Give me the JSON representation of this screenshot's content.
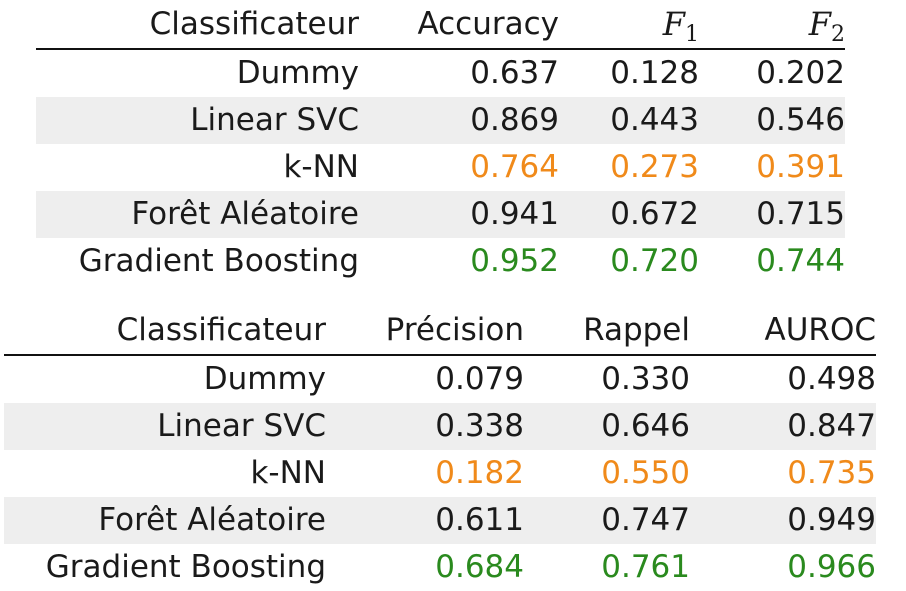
{
  "highlight_colors": {
    "third_best": "#f08a1a",
    "best": "#2a8a1e"
  },
  "table1": {
    "headers": [
      "Classificateur",
      "Accuracy"
    ],
    "metric_headers": [
      {
        "base": "F",
        "sub": "1"
      },
      {
        "base": "F",
        "sub": "2"
      }
    ],
    "rows": [
      {
        "name": "Dummy",
        "values": [
          "0.637",
          "0.128",
          "0.202"
        ],
        "highlight": "none"
      },
      {
        "name": "Linear SVC",
        "values": [
          "0.869",
          "0.443",
          "0.546"
        ],
        "highlight": "none"
      },
      {
        "name": "k-NN",
        "values": [
          "0.764",
          "0.273",
          "0.391"
        ],
        "highlight": "orange"
      },
      {
        "name": "Forêt Aléatoire",
        "values": [
          "0.941",
          "0.672",
          "0.715"
        ],
        "highlight": "none"
      },
      {
        "name": "Gradient Boosting",
        "values": [
          "0.952",
          "0.720",
          "0.744"
        ],
        "highlight": "green"
      }
    ]
  },
  "table2": {
    "headers": [
      "Classificateur",
      "Précision",
      "Rappel",
      "AUROC"
    ],
    "rows": [
      {
        "name": "Dummy",
        "values": [
          "0.079",
          "0.330",
          "0.498"
        ],
        "highlight": "none"
      },
      {
        "name": "Linear SVC",
        "values": [
          "0.338",
          "0.646",
          "0.847"
        ],
        "highlight": "none"
      },
      {
        "name": "k-NN",
        "values": [
          "0.182",
          "0.550",
          "0.735"
        ],
        "highlight": "orange"
      },
      {
        "name": "Forêt Aléatoire",
        "values": [
          "0.611",
          "0.747",
          "0.949"
        ],
        "highlight": "none"
      },
      {
        "name": "Gradient Boosting",
        "values": [
          "0.684",
          "0.761",
          "0.966"
        ],
        "highlight": "green"
      }
    ]
  }
}
